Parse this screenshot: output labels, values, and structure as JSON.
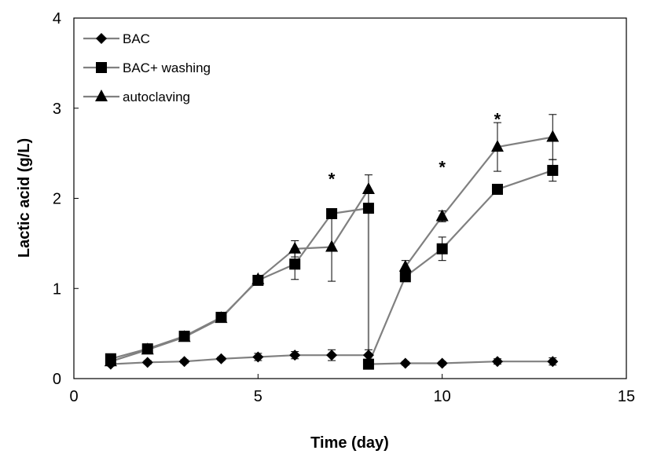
{
  "chart_data": {
    "type": "line",
    "xlabel": "Time (day)",
    "ylabel": "Lactic acid (g/L)",
    "xlim": [
      0,
      15
    ],
    "ylim": [
      0,
      4
    ],
    "xticks": [
      0,
      5,
      10,
      15
    ],
    "yticks": [
      0,
      1,
      2,
      3,
      4
    ],
    "grid": false,
    "legend_position": "top-left",
    "line_color": "#808080",
    "marker_color": "#000000",
    "series": [
      {
        "name": "BAC",
        "marker": "diamond",
        "segments": [
          [
            {
              "x": 1,
              "y": 0.16,
              "err": 0.02
            },
            {
              "x": 2,
              "y": 0.18,
              "err": 0.02
            },
            {
              "x": 3,
              "y": 0.19,
              "err": 0.02
            },
            {
              "x": 4,
              "y": 0.22,
              "err": 0.02
            },
            {
              "x": 5,
              "y": 0.24,
              "err": 0.04
            },
            {
              "x": 6,
              "y": 0.26,
              "err": 0.04
            },
            {
              "x": 7,
              "y": 0.26,
              "err": 0.06
            },
            {
              "x": 8,
              "y": 0.26,
              "err": 0.06
            },
            {
              "x": 8,
              "y": 0.16,
              "err": 0
            },
            {
              "x": 9,
              "y": 0.17,
              "err": 0.02
            },
            {
              "x": 10,
              "y": 0.17,
              "err": 0.02
            },
            {
              "x": 11.5,
              "y": 0.19,
              "err": 0.03
            },
            {
              "x": 13,
              "y": 0.19,
              "err": 0.04
            }
          ]
        ]
      },
      {
        "name": "BAC+ washing",
        "marker": "square",
        "segments": [
          [
            {
              "x": 1,
              "y": 0.22,
              "err": 0
            },
            {
              "x": 2,
              "y": 0.33,
              "err": 0
            },
            {
              "x": 3,
              "y": 0.47,
              "err": 0
            },
            {
              "x": 4,
              "y": 0.68,
              "err": 0
            },
            {
              "x": 5,
              "y": 1.09,
              "err": 0
            },
            {
              "x": 6,
              "y": 1.27,
              "err": 0.17
            },
            {
              "x": 7,
              "y": 1.83,
              "err": 0
            },
            {
              "x": 8,
              "y": 1.89,
              "err": 0
            },
            {
              "x": 8,
              "y": 0.16,
              "err": 0
            },
            {
              "x": 9,
              "y": 1.13,
              "err": 0
            },
            {
              "x": 10,
              "y": 1.44,
              "err": 0.13
            },
            {
              "x": 11.5,
              "y": 2.1,
              "err": 0
            },
            {
              "x": 13,
              "y": 2.31,
              "err": 0.12
            }
          ]
        ]
      },
      {
        "name": "autoclaving",
        "marker": "triangle",
        "segments": [
          [
            {
              "x": 1,
              "y": 0.19,
              "err": 0
            },
            {
              "x": 2,
              "y": 0.32,
              "err": 0
            },
            {
              "x": 3,
              "y": 0.46,
              "err": 0
            },
            {
              "x": 4,
              "y": 0.67,
              "err": 0
            },
            {
              "x": 5,
              "y": 1.1,
              "err": 0
            },
            {
              "x": 6,
              "y": 1.44,
              "err": 0.09
            },
            {
              "x": 7,
              "y": 1.46,
              "err": 0.38
            },
            {
              "x": 8,
              "y": 2.1,
              "err": 0.16
            }
          ],
          [
            {
              "x": 9,
              "y": 1.24,
              "err": 0.07
            },
            {
              "x": 10,
              "y": 1.8,
              "err": 0.06
            },
            {
              "x": 11.5,
              "y": 2.57,
              "err": 0.27
            },
            {
              "x": 13,
              "y": 2.68,
              "err": 0.25
            }
          ]
        ]
      }
    ],
    "annotations": [
      {
        "text": "*",
        "x": 7,
        "y": 2.22
      },
      {
        "text": "*",
        "x": 10,
        "y": 2.35
      },
      {
        "text": "*",
        "x": 11.5,
        "y": 2.88
      }
    ]
  }
}
